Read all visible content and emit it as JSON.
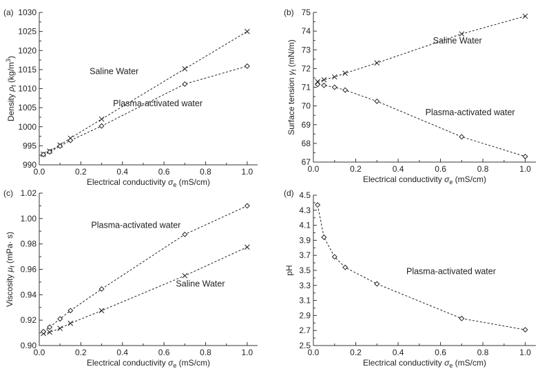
{
  "chart_data": [
    {
      "type": "line",
      "panel": "(a)",
      "xlabel_main": "Electrical conductivity",
      "xlabel_sym": "σ",
      "xlabel_sub": "e",
      "xlabel_unit": "(mS/cm)",
      "ylabel_main": "Density",
      "ylabel_sym": "ρ",
      "ylabel_sub": "f",
      "ylabel_unit": "(kg/m",
      "ylabel_sup": "3",
      "ylabel_close": ")",
      "xlim": [
        0,
        1.05
      ],
      "ylim": [
        990,
        1030
      ],
      "xticks": [
        0,
        0.2,
        0.4,
        0.6,
        0.8,
        1.0
      ],
      "xtick_labels": [
        "0.0",
        "0.2",
        "0.4",
        "0.6",
        "0.8",
        "1.0"
      ],
      "yticks": [
        990,
        995,
        1000,
        1005,
        1010,
        1015,
        1020,
        1025,
        1030
      ],
      "ytick_labels": [
        "990",
        "995",
        "1000",
        "1005",
        "1010",
        "1015",
        "1020",
        "1025",
        "1030"
      ],
      "series": [
        {
          "name": "Saline Water",
          "marker": "x",
          "x": [
            0.02,
            0.05,
            0.1,
            0.15,
            0.3,
            0.7,
            1.0
          ],
          "y": [
            992.8,
            993.6,
            995.2,
            997.0,
            1002.0,
            1015.2,
            1025.0
          ]
        },
        {
          "name": "Plasma-activated water",
          "marker": "diamond",
          "x": [
            0.02,
            0.05,
            0.1,
            0.15,
            0.3,
            0.7,
            1.0
          ],
          "y": [
            992.7,
            993.4,
            994.9,
            996.4,
            1000.2,
            1011.2,
            1015.9
          ]
        }
      ],
      "annotations": [
        {
          "text": "Saline Water",
          "x": 0.36,
          "y": 1013.8
        },
        {
          "text": "Plasma-activated water",
          "x": 0.57,
          "y": 1005.4
        }
      ]
    },
    {
      "type": "line",
      "panel": "(b)",
      "xlabel_main": "Electrical conductivity",
      "xlabel_sym": "σ",
      "xlabel_sub": "e",
      "xlabel_unit": "(mS/cm)",
      "ylabel_main": "Surface tension",
      "ylabel_sym": "γ",
      "ylabel_sub": "f",
      "ylabel_unit": "(mN/m)",
      "xlim": [
        0,
        1.05
      ],
      "ylim": [
        67,
        75
      ],
      "xticks": [
        0,
        0.2,
        0.4,
        0.6,
        0.8,
        1.0
      ],
      "xtick_labels": [
        "0.0",
        "0.2",
        "0.4",
        "0.6",
        "0.8",
        "1.0"
      ],
      "yticks": [
        67,
        68,
        69,
        70,
        71,
        72,
        73,
        74,
        75
      ],
      "ytick_labels": [
        "67",
        "68",
        "69",
        "70",
        "71",
        "72",
        "73",
        "74",
        "75"
      ],
      "series": [
        {
          "name": "Saline Water",
          "marker": "x",
          "x": [
            0.02,
            0.05,
            0.1,
            0.15,
            0.3,
            0.7,
            1.0
          ],
          "y": [
            71.3,
            71.4,
            71.55,
            71.75,
            72.3,
            73.85,
            74.8
          ]
        },
        {
          "name": "Plasma-activated water",
          "marker": "diamond",
          "x": [
            0.02,
            0.05,
            0.1,
            0.15,
            0.3,
            0.7,
            1.0
          ],
          "y": [
            71.15,
            71.1,
            71.0,
            70.85,
            70.25,
            68.35,
            67.3
          ]
        }
      ],
      "annotations": [
        {
          "text": "Saline Water",
          "x": 0.68,
          "y": 73.35
        },
        {
          "text": "Plasma-activated water",
          "x": 0.74,
          "y": 69.5
        }
      ]
    },
    {
      "type": "line",
      "panel": "(c)",
      "xlabel_main": "Electrical conductivity",
      "xlabel_sym": "σ",
      "xlabel_sub": "e",
      "xlabel_unit": "(mS/cm)",
      "ylabel_main": "Viscosity",
      "ylabel_sym": "μ",
      "ylabel_sub": "f",
      "ylabel_unit": "(mPa· s)",
      "xlim": [
        0,
        1.05
      ],
      "ylim": [
        0.9,
        1.02
      ],
      "xticks": [
        0,
        0.2,
        0.4,
        0.6,
        0.8,
        1.0
      ],
      "xtick_labels": [
        "0.0",
        "0.2",
        "0.4",
        "0.6",
        "0.8",
        "1.0"
      ],
      "yticks": [
        0.9,
        0.92,
        0.94,
        0.96,
        0.98,
        1.0,
        1.02
      ],
      "ytick_labels": [
        "0.90",
        "0.92",
        "0.94",
        "0.96",
        "0.98",
        "1.00",
        "1.02"
      ],
      "series": [
        {
          "name": "Saline Water",
          "marker": "x",
          "x": [
            0.02,
            0.05,
            0.1,
            0.15,
            0.3,
            0.7,
            1.0
          ],
          "y": [
            0.9095,
            0.9105,
            0.9135,
            0.9175,
            0.9275,
            0.955,
            0.9775
          ]
        },
        {
          "name": "Plasma-activated water",
          "marker": "diamond",
          "x": [
            0.02,
            0.05,
            0.1,
            0.15,
            0.3,
            0.7,
            1.0
          ],
          "y": [
            0.911,
            0.9145,
            0.921,
            0.9275,
            0.9445,
            0.9875,
            1.01
          ]
        }
      ],
      "annotations": [
        {
          "text": "Plasma-activated water",
          "x": 0.465,
          "y": 0.9925
        },
        {
          "text": "Saline Water",
          "x": 0.775,
          "y": 0.9465
        }
      ]
    },
    {
      "type": "line",
      "panel": "(d)",
      "xlabel_main": "Electrical conductivity",
      "xlabel_sym": "σ",
      "xlabel_sub": "e",
      "xlabel_unit": "(mS/cm)",
      "ylabel_main": "pH",
      "xlim": [
        0,
        1.05
      ],
      "ylim": [
        2.5,
        4.5
      ],
      "xticks": [
        0,
        0.2,
        0.4,
        0.6,
        0.8,
        1.0
      ],
      "xtick_labels": [
        "0.0",
        "0.2",
        "0.4",
        "0.6",
        "0.8",
        "1.0"
      ],
      "yticks": [
        2.5,
        2.7,
        2.9,
        3.1,
        3.3,
        3.5,
        3.7,
        3.9,
        4.1,
        4.3,
        4.5
      ],
      "ytick_labels": [
        "2.5",
        "2.7",
        "2.9",
        "3.1",
        "3.3",
        "3.5",
        "3.7",
        "3.9",
        "4.1",
        "4.3",
        "4.5"
      ],
      "series": [
        {
          "name": "Plasma-activated water",
          "marker": "diamond",
          "x": [
            0.02,
            0.05,
            0.1,
            0.15,
            0.3,
            0.7,
            1.0
          ],
          "y": [
            4.37,
            3.94,
            3.68,
            3.54,
            3.32,
            2.86,
            2.71
          ]
        }
      ],
      "annotations": [
        {
          "text": "Plasma-activated water",
          "x": 0.65,
          "y": 3.45
        }
      ]
    }
  ]
}
